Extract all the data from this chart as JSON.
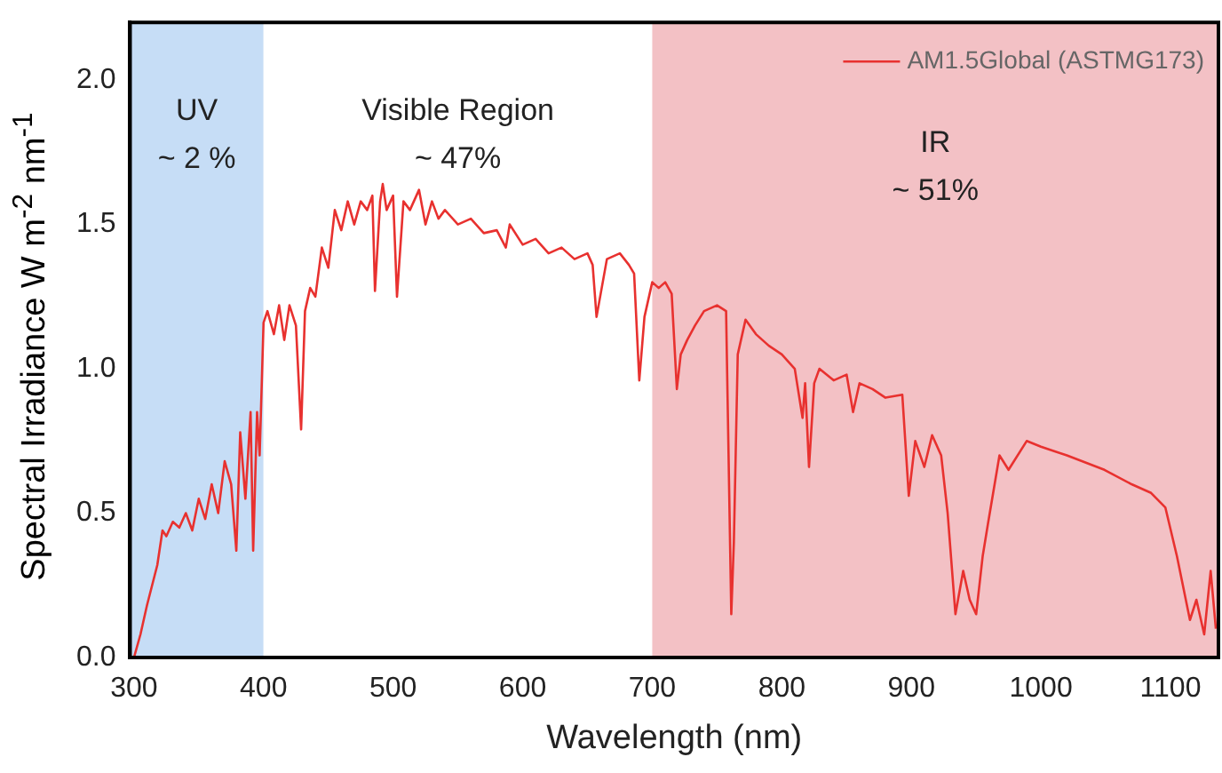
{
  "chart_data": {
    "type": "line",
    "xlabel": "Wavelength (nm)",
    "ylabel": "Spectral Irradiance W m$^{-2}$ nm$^{-1}$",
    "xlim": [
      297,
      1137
    ],
    "xticks": [
      300,
      400,
      500,
      600,
      700,
      800,
      900,
      1000,
      1100
    ],
    "ylim": [
      0,
      2.2
    ],
    "yticks": [
      {
        "value": 0,
        "label": "0.0"
      },
      {
        "value": 0.5,
        "label": "0.5"
      },
      {
        "value": 1,
        "label": "1.0"
      },
      {
        "value": 1.5,
        "label": "1.5"
      },
      {
        "value": 2,
        "label": "2.0"
      }
    ],
    "grid": false,
    "legend": "top right",
    "marker": "none",
    "line_style": "solid",
    "bands": [
      {
        "axis": "x",
        "from": 297,
        "to": 400,
        "color": "#c6ddf6",
        "label": "UV"
      },
      {
        "axis": "x",
        "from": 400,
        "to": 700,
        "color": "#ffffff",
        "label": "Visible Region"
      },
      {
        "axis": "x",
        "from": 700,
        "to": 1137,
        "color": "#f3c1c5",
        "label": "IR"
      }
    ],
    "annotations": [
      "~ 2 %",
      "~ 47%",
      "~ 51%"
    ],
    "series": [
      {
        "name": "AM1.5Global (ASTMG173)",
        "color": "#e8312f",
        "x": [
          300,
          305,
          310,
          318,
          322,
          325,
          330,
          335,
          340,
          345,
          350,
          355,
          360,
          365,
          370,
          375,
          379,
          382,
          386,
          390,
          392,
          395,
          397,
          400,
          403,
          408,
          412,
          416,
          420,
          425,
          429,
          432,
          436,
          440,
          445,
          450,
          455,
          460,
          465,
          470,
          475,
          480,
          484,
          486,
          490,
          492,
          495,
          500,
          503,
          508,
          513,
          520,
          525,
          530,
          535,
          540,
          550,
          560,
          570,
          580,
          587,
          590,
          600,
          610,
          620,
          630,
          640,
          650,
          654,
          657,
          665,
          675,
          682,
          686,
          690,
          694,
          700,
          705,
          710,
          715,
          719,
          722,
          727,
          733,
          740,
          750,
          757,
          761,
          763,
          766,
          772,
          780,
          790,
          800,
          810,
          816,
          818,
          821,
          825,
          829,
          840,
          850,
          855,
          860,
          870,
          880,
          893,
          898,
          903,
          910,
          916,
          923,
          928,
          934,
          940,
          945,
          950,
          955,
          959,
          968,
          975,
          989,
          1000,
          1020,
          1049,
          1070,
          1085,
          1096,
          1105,
          1115,
          1120,
          1126,
          1131,
          1135
        ],
        "values": [
          0,
          0.08,
          0.18,
          0.32,
          0.44,
          0.42,
          0.47,
          0.45,
          0.5,
          0.44,
          0.55,
          0.48,
          0.6,
          0.5,
          0.68,
          0.6,
          0.37,
          0.78,
          0.55,
          0.85,
          0.37,
          0.85,
          0.7,
          1.16,
          1.2,
          1.12,
          1.22,
          1.1,
          1.22,
          1.15,
          0.79,
          1.2,
          1.28,
          1.25,
          1.42,
          1.35,
          1.55,
          1.48,
          1.58,
          1.5,
          1.58,
          1.55,
          1.6,
          1.27,
          1.58,
          1.64,
          1.55,
          1.6,
          1.25,
          1.58,
          1.55,
          1.62,
          1.5,
          1.58,
          1.52,
          1.55,
          1.5,
          1.52,
          1.47,
          1.48,
          1.42,
          1.5,
          1.43,
          1.45,
          1.4,
          1.42,
          1.38,
          1.4,
          1.36,
          1.18,
          1.38,
          1.4,
          1.36,
          1.33,
          0.96,
          1.18,
          1.3,
          1.28,
          1.3,
          1.26,
          0.93,
          1.05,
          1.1,
          1.15,
          1.2,
          1.22,
          1.2,
          0.15,
          0.4,
          1.05,
          1.17,
          1.12,
          1.08,
          1.05,
          1.0,
          0.83,
          0.95,
          0.66,
          0.95,
          1.0,
          0.96,
          0.98,
          0.85,
          0.95,
          0.93,
          0.9,
          0.91,
          0.56,
          0.75,
          0.66,
          0.77,
          0.7,
          0.5,
          0.15,
          0.3,
          0.2,
          0.15,
          0.35,
          0.46,
          0.7,
          0.65,
          0.75,
          0.73,
          0.7,
          0.65,
          0.6,
          0.57,
          0.52,
          0.35,
          0.13,
          0.2,
          0.08,
          0.3,
          0.1
        ]
      }
    ]
  }
}
